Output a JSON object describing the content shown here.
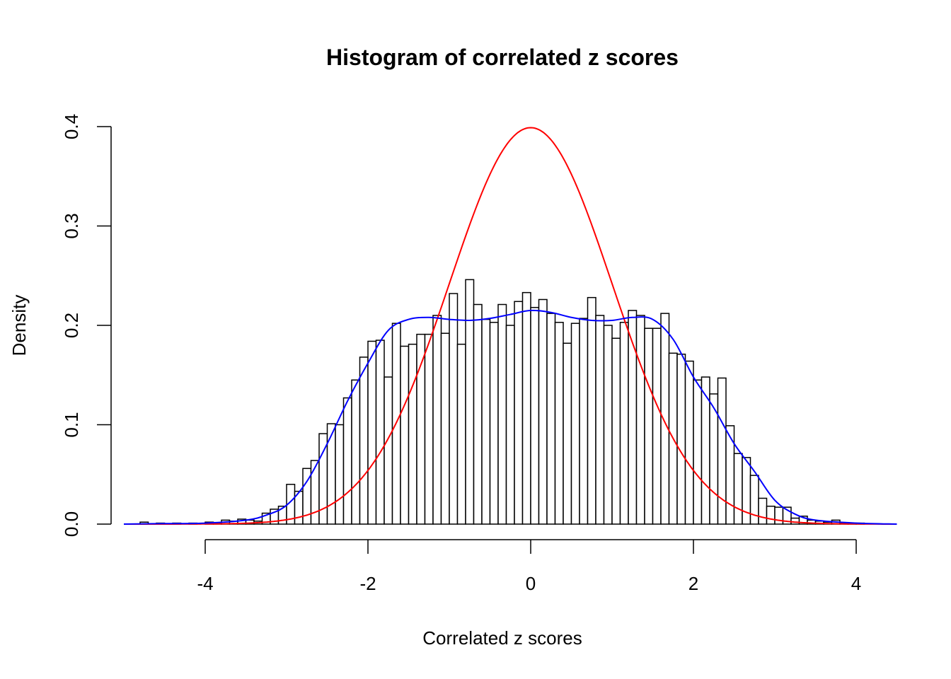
{
  "chart_data": {
    "type": "bar",
    "title": "Histogram of correlated z scores",
    "xlabel": "Correlated z scores",
    "ylabel": "Density",
    "xlim": [
      -5,
      4.5
    ],
    "ylim": [
      0,
      0.4
    ],
    "xticks": [
      -4,
      -2,
      0,
      2,
      4
    ],
    "yticks": [
      0.0,
      0.1,
      0.2,
      0.3,
      0.4
    ],
    "ytick_labels": [
      "0.0",
      "0.1",
      "0.2",
      "0.3",
      "0.4"
    ],
    "xtick_labels": [
      "-4",
      "-2",
      "0",
      "2",
      "4"
    ],
    "grid": false,
    "bin_width": 0.1,
    "bin_starts": [
      -4.8,
      -4.7,
      -4.6,
      -4.5,
      -4.4,
      -4.3,
      -4.2,
      -4.1,
      -4.0,
      -3.9,
      -3.8,
      -3.7,
      -3.6,
      -3.5,
      -3.4,
      -3.3,
      -3.2,
      -3.1,
      -3.0,
      -2.9,
      -2.8,
      -2.7,
      -2.6,
      -2.5,
      -2.4,
      -2.3,
      -2.2,
      -2.1,
      -2.0,
      -1.9,
      -1.8,
      -1.7,
      -1.6,
      -1.5,
      -1.4,
      -1.3,
      -1.2,
      -1.1,
      -1.0,
      -0.9,
      -0.8,
      -0.7,
      -0.6,
      -0.5,
      -0.4,
      -0.3,
      -0.2,
      -0.1,
      0.0,
      0.1,
      0.2,
      0.3,
      0.4,
      0.5,
      0.6,
      0.7,
      0.8,
      0.9,
      1.0,
      1.1,
      1.2,
      1.3,
      1.4,
      1.5,
      1.6,
      1.7,
      1.8,
      1.9,
      2.0,
      2.1,
      2.2,
      2.3,
      2.4,
      2.5,
      2.6,
      2.7,
      2.8,
      2.9,
      3.0,
      3.1,
      3.2,
      3.3,
      3.4,
      3.5,
      3.6,
      3.7,
      3.8,
      3.9,
      4.0
    ],
    "densities": [
      0.002,
      0,
      0.001,
      0,
      0.001,
      0,
      0.001,
      0,
      0.002,
      0.001,
      0.004,
      0.003,
      0.005,
      0.004,
      0.003,
      0.011,
      0.015,
      0.018,
      0.04,
      0.033,
      0.056,
      0.064,
      0.091,
      0.101,
      0.1,
      0.127,
      0.145,
      0.168,
      0.184,
      0.185,
      0.148,
      0.202,
      0.179,
      0.181,
      0.191,
      0.191,
      0.21,
      0.192,
      0.232,
      0.181,
      0.246,
      0.221,
      0.206,
      0.203,
      0.221,
      0.2,
      0.224,
      0.233,
      0.218,
      0.226,
      0.212,
      0.203,
      0.182,
      0.202,
      0.207,
      0.228,
      0.21,
      0.2,
      0.187,
      0.203,
      0.215,
      0.21,
      0.197,
      0.197,
      0.212,
      0.172,
      0.171,
      0.164,
      0.145,
      0.148,
      0.131,
      0.147,
      0.099,
      0.071,
      0.067,
      0.049,
      0.026,
      0.018,
      0.017,
      0.017,
      0.006,
      0.008,
      0.004,
      0.003,
      0.002,
      0.004,
      0.001,
      0.001,
      0.001
    ],
    "bar_fill": "#ffffff",
    "bar_stroke": "#000000",
    "curves": [
      {
        "kind": "standard normal density",
        "color": "#ff0000"
      },
      {
        "kind": "kernel density estimate",
        "color": "#0000ff",
        "x": [
          -5,
          -4.5,
          -4,
          -3.5,
          -3.25,
          -3,
          -2.75,
          -2.5,
          -2.25,
          -2,
          -1.75,
          -1.5,
          -1.25,
          -1,
          -0.75,
          -0.5,
          -0.25,
          0,
          0.25,
          0.5,
          0.75,
          1,
          1.25,
          1.5,
          1.75,
          2,
          2.25,
          2.5,
          2.75,
          3,
          3.25,
          3.5,
          4,
          4.5
        ],
        "y": [
          0,
          0.0005,
          0.001,
          0.004,
          0.009,
          0.019,
          0.043,
          0.081,
          0.124,
          0.162,
          0.195,
          0.206,
          0.208,
          0.206,
          0.205,
          0.207,
          0.211,
          0.215,
          0.213,
          0.208,
          0.205,
          0.205,
          0.208,
          0.206,
          0.186,
          0.148,
          0.117,
          0.081,
          0.053,
          0.024,
          0.01,
          0.004,
          0.001,
          0
        ]
      }
    ]
  }
}
